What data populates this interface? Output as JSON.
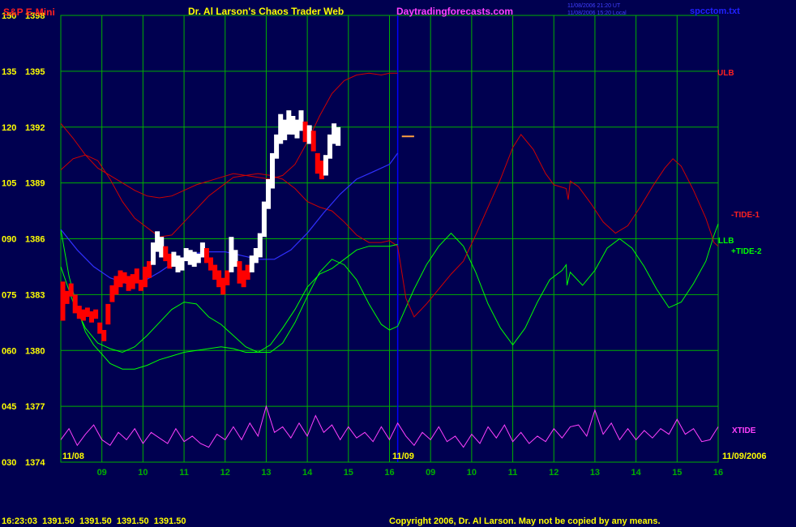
{
  "header": {
    "instrument": "S&P E-Mini",
    "title": "Dr. Al Larson's Chaos Trader Web",
    "site": "Daytradingforecasts.com",
    "stamp_line1": "11/08/2006 21:20 UT",
    "stamp_line2": "11/08/2006 15:20 Local",
    "data_file": "spcctom.txt"
  },
  "footer": {
    "quote": "16:23:03  1391.50  1391.50  1391.50  1391.50",
    "copyright": "Copyright 2006, Dr. Al Larson. May not be copied by any means."
  },
  "colors": {
    "background": "#000050",
    "grid": "#00b000",
    "price_axis": "#ffff00",
    "ulb": "#d00000",
    "tide1": "#d00000",
    "llb": "#00ff00",
    "tide2": "#00ff00",
    "xtide": "#ff40ff",
    "ema": "#3030ff",
    "bar_up": "#ffffff",
    "bar_down": "#ff0000",
    "marker": "#0000ff"
  },
  "chart_data": {
    "type": "line",
    "y_left_ticks": [
      "150",
      "135",
      "120",
      "105",
      "090",
      "075",
      "060",
      "045",
      "030"
    ],
    "y_price_ticks": [
      "1398",
      "1395",
      "1392",
      "1389",
      "1386",
      "1383",
      "1380",
      "1377",
      "1374"
    ],
    "x_ticks": [
      "09",
      "10",
      "11",
      "12",
      "13",
      "14",
      "15",
      "16",
      "09",
      "10",
      "11",
      "12",
      "13",
      "14",
      "15",
      "16"
    ],
    "date_labels": {
      "start": "11/08",
      "mid": "11/09",
      "end": "11/09/2006"
    },
    "series_labels": {
      "ulb": "ULB",
      "tide1": "-TIDE-1",
      "llb": "LLB",
      "tide2": "+TIDE-2",
      "xtide": "XTIDE"
    },
    "xlim": [
      0,
      16
    ],
    "ylim": [
      1374,
      1398
    ],
    "session_break_x": 8.2,
    "last_price": 1391.5,
    "ulb": [
      [
        0,
        1392.2
      ],
      [
        0.3,
        1391.4
      ],
      [
        0.6,
        1390.5
      ],
      [
        0.9,
        1389.8
      ],
      [
        1.2,
        1389.4
      ],
      [
        1.5,
        1389
      ],
      [
        1.8,
        1388.6
      ],
      [
        2.1,
        1388.3
      ],
      [
        2.4,
        1388.2
      ],
      [
        2.7,
        1388.3
      ],
      [
        3.0,
        1388.6
      ],
      [
        3.3,
        1388.9
      ],
      [
        3.6,
        1389.1
      ],
      [
        3.9,
        1389.3
      ],
      [
        4.2,
        1389.5
      ],
      [
        4.5,
        1389.4
      ],
      [
        4.8,
        1389.3
      ],
      [
        5.1,
        1389.2
      ],
      [
        5.4,
        1389.4
      ],
      [
        5.7,
        1390
      ],
      [
        6.0,
        1391.2
      ],
      [
        6.3,
        1392.6
      ],
      [
        6.6,
        1393.8
      ],
      [
        6.9,
        1394.5
      ],
      [
        7.2,
        1394.8
      ],
      [
        7.5,
        1394.9
      ],
      [
        7.8,
        1394.8
      ],
      [
        8.0,
        1394.9
      ],
      [
        8.2,
        1394.9
      ]
    ],
    "llb": [
      [
        0,
        1386.5
      ],
      [
        0.2,
        1384
      ],
      [
        0.4,
        1382.3
      ],
      [
        0.6,
        1381
      ],
      [
        0.8,
        1380.3
      ],
      [
        1.0,
        1379.8
      ],
      [
        1.2,
        1379.3
      ],
      [
        1.5,
        1379.0
      ],
      [
        1.8,
        1379.0
      ],
      [
        2.1,
        1379.2
      ],
      [
        2.4,
        1379.5
      ],
      [
        2.7,
        1379.7
      ],
      [
        3.0,
        1379.9
      ],
      [
        3.3,
        1380.0
      ],
      [
        3.6,
        1380.1
      ],
      [
        3.9,
        1380.2
      ],
      [
        4.2,
        1380.1
      ],
      [
        4.5,
        1379.9
      ],
      [
        4.8,
        1379.9
      ],
      [
        5.1,
        1380.3
      ],
      [
        5.4,
        1381.2
      ],
      [
        5.7,
        1382.2
      ],
      [
        6.0,
        1383.4
      ],
      [
        6.3,
        1384.1
      ],
      [
        6.6,
        1384.4
      ],
      [
        6.9,
        1384.9
      ],
      [
        7.2,
        1385.4
      ],
      [
        7.5,
        1385.6
      ],
      [
        7.8,
        1385.6
      ],
      [
        8.0,
        1385.6
      ],
      [
        8.2,
        1385.7
      ]
    ],
    "tide1": [
      [
        0,
        1389.7
      ],
      [
        0.3,
        1390.3
      ],
      [
        0.6,
        1390.5
      ],
      [
        0.9,
        1390.2
      ],
      [
        1.2,
        1389.2
      ],
      [
        1.5,
        1388
      ],
      [
        1.8,
        1387.1
      ],
      [
        2.1,
        1386.6
      ],
      [
        2.4,
        1386.1
      ],
      [
        2.7,
        1386.2
      ],
      [
        3.0,
        1386.9
      ],
      [
        3.3,
        1387.6
      ],
      [
        3.6,
        1388.3
      ],
      [
        3.9,
        1388.8
      ],
      [
        4.2,
        1389.3
      ],
      [
        4.5,
        1389.4
      ],
      [
        4.8,
        1389.5
      ],
      [
        5.1,
        1389.4
      ],
      [
        5.4,
        1389.2
      ],
      [
        5.7,
        1388.7
      ],
      [
        6.0,
        1388
      ],
      [
        6.3,
        1387.7
      ],
      [
        6.6,
        1387.5
      ],
      [
        6.9,
        1386.9
      ],
      [
        7.2,
        1386.2
      ],
      [
        7.5,
        1385.8
      ],
      [
        7.8,
        1385.8
      ],
      [
        8.0,
        1385.9
      ],
      [
        8.2,
        1385.6
      ],
      [
        8.4,
        1382.8
      ],
      [
        8.6,
        1381.8
      ],
      [
        8.9,
        1382.5
      ],
      [
        9.2,
        1383.3
      ],
      [
        9.5,
        1384.1
      ],
      [
        9.8,
        1384.8
      ],
      [
        10.1,
        1386.2
      ],
      [
        10.4,
        1387.7
      ],
      [
        10.7,
        1389.2
      ],
      [
        11.0,
        1390.9
      ],
      [
        11.2,
        1391.6
      ],
      [
        11.5,
        1390.8
      ],
      [
        11.8,
        1389.5
      ],
      [
        12.0,
        1388.9
      ],
      [
        12.3,
        1388.7
      ],
      [
        12.35,
        1388.1
      ],
      [
        12.4,
        1389.1
      ],
      [
        12.6,
        1388.8
      ],
      [
        12.9,
        1387.9
      ],
      [
        13.2,
        1386.9
      ],
      [
        13.5,
        1386.3
      ],
      [
        13.8,
        1386.7
      ],
      [
        14.1,
        1387.7
      ],
      [
        14.4,
        1388.8
      ],
      [
        14.7,
        1389.8
      ],
      [
        14.9,
        1390.3
      ],
      [
        15.1,
        1389.9
      ],
      [
        15.4,
        1388.6
      ],
      [
        15.7,
        1387.1
      ],
      [
        15.9,
        1385.8
      ],
      [
        16.0,
        1385.6
      ]
    ],
    "tide2": [
      [
        0,
        1384.5
      ],
      [
        0.3,
        1382.6
      ],
      [
        0.6,
        1381.2
      ],
      [
        0.9,
        1380.4
      ],
      [
        1.2,
        1380.1
      ],
      [
        1.5,
        1379.9
      ],
      [
        1.8,
        1380.2
      ],
      [
        2.1,
        1380.8
      ],
      [
        2.4,
        1381.5
      ],
      [
        2.7,
        1382.2
      ],
      [
        3.0,
        1382.6
      ],
      [
        3.3,
        1382.5
      ],
      [
        3.6,
        1381.8
      ],
      [
        3.9,
        1381.4
      ],
      [
        4.2,
        1380.8
      ],
      [
        4.5,
        1380.2
      ],
      [
        4.8,
        1379.9
      ],
      [
        5.1,
        1379.9
      ],
      [
        5.4,
        1380.4
      ],
      [
        5.7,
        1381.5
      ],
      [
        6.0,
        1382.9
      ],
      [
        6.3,
        1384.2
      ],
      [
        6.6,
        1384.9
      ],
      [
        6.9,
        1384.6
      ],
      [
        7.2,
        1383.8
      ],
      [
        7.5,
        1382.5
      ],
      [
        7.8,
        1381.4
      ],
      [
        8.0,
        1381.1
      ],
      [
        8.2,
        1381.3
      ],
      [
        8.6,
        1383.3
      ],
      [
        8.9,
        1384.6
      ],
      [
        9.2,
        1385.6
      ],
      [
        9.5,
        1386.3
      ],
      [
        9.8,
        1385.6
      ],
      [
        10.1,
        1384.2
      ],
      [
        10.4,
        1382.5
      ],
      [
        10.7,
        1381.2
      ],
      [
        11.0,
        1380.3
      ],
      [
        11.3,
        1381.2
      ],
      [
        11.6,
        1382.6
      ],
      [
        11.9,
        1383.8
      ],
      [
        12.2,
        1384.3
      ],
      [
        12.3,
        1384.6
      ],
      [
        12.32,
        1383.5
      ],
      [
        12.4,
        1384.2
      ],
      [
        12.7,
        1383.5
      ],
      [
        13.0,
        1384.3
      ],
      [
        13.3,
        1385.5
      ],
      [
        13.6,
        1386.0
      ],
      [
        13.9,
        1385.5
      ],
      [
        14.2,
        1384.5
      ],
      [
        14.5,
        1383.3
      ],
      [
        14.8,
        1382.3
      ],
      [
        15.1,
        1382.6
      ],
      [
        15.4,
        1383.6
      ],
      [
        15.7,
        1384.8
      ],
      [
        15.9,
        1386.2
      ],
      [
        16.0,
        1386.8
      ]
    ],
    "ema": [
      [
        0,
        1386.5
      ],
      [
        0.4,
        1385.4
      ],
      [
        0.8,
        1384.5
      ],
      [
        1.2,
        1383.9
      ],
      [
        1.6,
        1383.6
      ],
      [
        2.0,
        1383.7
      ],
      [
        2.4,
        1384.2
      ],
      [
        2.8,
        1384.8
      ],
      [
        3.2,
        1385.2
      ],
      [
        3.6,
        1385.3
      ],
      [
        4.0,
        1385.3
      ],
      [
        4.4,
        1385.1
      ],
      [
        4.8,
        1384.9
      ],
      [
        5.2,
        1384.9
      ],
      [
        5.6,
        1385.4
      ],
      [
        6.0,
        1386.3
      ],
      [
        6.4,
        1387.4
      ],
      [
        6.8,
        1388.4
      ],
      [
        7.2,
        1389.2
      ],
      [
        7.6,
        1389.6
      ],
      [
        8.0,
        1390.0
      ],
      [
        8.2,
        1390.6
      ]
    ],
    "xtide": [
      [
        0,
        1375.2
      ],
      [
        0.2,
        1375.8
      ],
      [
        0.4,
        1374.9
      ],
      [
        0.6,
        1375.5
      ],
      [
        0.8,
        1376.0
      ],
      [
        1.0,
        1375.2
      ],
      [
        1.2,
        1374.9
      ],
      [
        1.4,
        1375.6
      ],
      [
        1.6,
        1375.2
      ],
      [
        1.8,
        1375.8
      ],
      [
        2.0,
        1375.0
      ],
      [
        2.2,
        1375.6
      ],
      [
        2.4,
        1375.3
      ],
      [
        2.6,
        1375.0
      ],
      [
        2.8,
        1375.8
      ],
      [
        3.0,
        1375.1
      ],
      [
        3.2,
        1375.4
      ],
      [
        3.4,
        1375.0
      ],
      [
        3.6,
        1374.8
      ],
      [
        3.8,
        1375.5
      ],
      [
        4.0,
        1375.2
      ],
      [
        4.2,
        1375.9
      ],
      [
        4.4,
        1375.2
      ],
      [
        4.6,
        1376.1
      ],
      [
        4.8,
        1375.4
      ],
      [
        5.0,
        1377.0
      ],
      [
        5.2,
        1375.6
      ],
      [
        5.4,
        1375.9
      ],
      [
        5.6,
        1375.3
      ],
      [
        5.8,
        1376.1
      ],
      [
        6.0,
        1375.4
      ],
      [
        6.2,
        1376.5
      ],
      [
        6.4,
        1375.6
      ],
      [
        6.6,
        1376.0
      ],
      [
        6.8,
        1375.2
      ],
      [
        7.0,
        1375.9
      ],
      [
        7.2,
        1375.3
      ],
      [
        7.4,
        1375.6
      ],
      [
        7.6,
        1375.1
      ],
      [
        7.8,
        1375.9
      ],
      [
        8.0,
        1375.2
      ],
      [
        8.2,
        1376.1
      ],
      [
        8.4,
        1375.4
      ],
      [
        8.6,
        1374.9
      ],
      [
        8.8,
        1375.6
      ],
      [
        9.0,
        1375.2
      ],
      [
        9.2,
        1375.9
      ],
      [
        9.4,
        1375.1
      ],
      [
        9.6,
        1375.4
      ],
      [
        9.8,
        1374.8
      ],
      [
        10.0,
        1375.5
      ],
      [
        10.2,
        1375.0
      ],
      [
        10.4,
        1375.9
      ],
      [
        10.6,
        1375.3
      ],
      [
        10.8,
        1376.0
      ],
      [
        11.0,
        1375.1
      ],
      [
        11.2,
        1375.6
      ],
      [
        11.4,
        1375.0
      ],
      [
        11.6,
        1375.4
      ],
      [
        11.8,
        1375.1
      ],
      [
        12.0,
        1375.8
      ],
      [
        12.2,
        1375.3
      ],
      [
        12.4,
        1375.9
      ],
      [
        12.6,
        1376.0
      ],
      [
        12.8,
        1375.4
      ],
      [
        13.0,
        1376.8
      ],
      [
        13.2,
        1375.5
      ],
      [
        13.4,
        1376.1
      ],
      [
        13.6,
        1375.2
      ],
      [
        13.8,
        1375.8
      ],
      [
        14.0,
        1375.2
      ],
      [
        14.2,
        1375.7
      ],
      [
        14.4,
        1375.3
      ],
      [
        14.6,
        1375.8
      ],
      [
        14.8,
        1375.5
      ],
      [
        15.0,
        1376.3
      ],
      [
        15.2,
        1375.5
      ],
      [
        15.4,
        1375.8
      ],
      [
        15.6,
        1375.1
      ],
      [
        15.8,
        1375.2
      ],
      [
        16.0,
        1375.9
      ]
    ],
    "price_bars": [
      [
        0.05,
        1383.7,
        1381.6
      ],
      [
        0.15,
        1383.2,
        1382.5
      ],
      [
        0.25,
        1383.6,
        1382.9
      ],
      [
        0.35,
        1383.0,
        1382.0
      ],
      [
        0.45,
        1382.4,
        1381.7
      ],
      [
        0.55,
        1382.2,
        1381.6
      ],
      [
        0.65,
        1382.3,
        1381.8
      ],
      [
        0.75,
        1382.1,
        1381.5
      ],
      [
        0.85,
        1382.2,
        1381.7
      ],
      [
        0.95,
        1381.5,
        1380.9
      ],
      [
        1.05,
        1381.1,
        1380.5
      ],
      [
        1.15,
        1382.5,
        1381.4
      ],
      [
        1.25,
        1383.5,
        1382.6
      ],
      [
        1.35,
        1384.0,
        1383.0
      ],
      [
        1.45,
        1384.3,
        1383.4
      ],
      [
        1.55,
        1384.2,
        1383.6
      ],
      [
        1.65,
        1384.0,
        1383.2
      ],
      [
        1.75,
        1384.1,
        1383.3
      ],
      [
        1.85,
        1384.4,
        1383.6
      ],
      [
        1.95,
        1383.8,
        1383.2
      ],
      [
        2.05,
        1384.5,
        1383.4
      ],
      [
        2.15,
        1384.8,
        1383.9
      ],
      [
        2.25,
        1385.8,
        1384.6
      ],
      [
        2.35,
        1386.4,
        1385.3
      ],
      [
        2.45,
        1386.1,
        1385.0
      ],
      [
        2.55,
        1385.6,
        1384.8
      ],
      [
        2.65,
        1385.2,
        1384.4
      ],
      [
        2.75,
        1385.3,
        1384.5
      ],
      [
        2.85,
        1385.1,
        1384.2
      ],
      [
        2.95,
        1385.0,
        1384.3
      ],
      [
        3.05,
        1385.5,
        1384.8
      ],
      [
        3.15,
        1385.4,
        1384.6
      ],
      [
        3.25,
        1385.3,
        1384.5
      ],
      [
        3.35,
        1385.2,
        1384.7
      ],
      [
        3.45,
        1385.8,
        1385.0
      ],
      [
        3.55,
        1385.5,
        1384.7
      ],
      [
        3.65,
        1385.0,
        1384.3
      ],
      [
        3.75,
        1384.6,
        1383.8
      ],
      [
        3.85,
        1384.3,
        1383.4
      ],
      [
        3.95,
        1383.9,
        1383.0
      ],
      [
        4.05,
        1384.3,
        1383.5
      ],
      [
        4.15,
        1386.1,
        1384.2
      ],
      [
        4.25,
        1385.4,
        1384.5
      ],
      [
        4.35,
        1384.8,
        1383.6
      ],
      [
        4.45,
        1384.3,
        1383.4
      ],
      [
        4.55,
        1384.6,
        1383.8
      ],
      [
        4.65,
        1385.1,
        1384.2
      ],
      [
        4.75,
        1385.5,
        1384.7
      ],
      [
        4.85,
        1386.3,
        1385.0
      ],
      [
        4.95,
        1388.0,
        1386.1
      ],
      [
        5.05,
        1389.2,
        1387.6
      ],
      [
        5.15,
        1390.6,
        1388.7
      ],
      [
        5.25,
        1391.6,
        1390.3
      ],
      [
        5.35,
        1392.7,
        1391.1
      ],
      [
        5.45,
        1392.4,
        1391.3
      ],
      [
        5.55,
        1392.9,
        1391.6
      ],
      [
        5.65,
        1392.6,
        1391.6
      ],
      [
        5.75,
        1392.4,
        1391.4
      ],
      [
        5.85,
        1392.9,
        1391.8
      ],
      [
        5.95,
        1392.3,
        1391.2
      ],
      [
        6.05,
        1392.1,
        1391.1
      ],
      [
        6.15,
        1391.8,
        1390.7
      ],
      [
        6.25,
        1390.6,
        1389.5
      ],
      [
        6.35,
        1390.2,
        1389.2
      ],
      [
        6.45,
        1390.5,
        1389.4
      ],
      [
        6.55,
        1391.6,
        1390.3
      ],
      [
        6.65,
        1392.2,
        1391.1
      ],
      [
        6.75,
        1392.0,
        1391.0
      ]
    ]
  }
}
